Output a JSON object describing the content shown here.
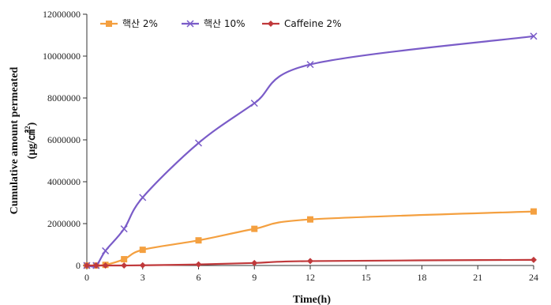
{
  "chart_data": {
    "type": "line",
    "xlabel": "Time(h)",
    "ylabel_main": "Cumulative amount permeated",
    "ylabel_unit_prefix": "(μg/㎠",
    "ylabel_unit_sup": "2",
    "ylabel_unit_suffix": ")",
    "xlim": [
      0,
      24
    ],
    "ylim": [
      0,
      12000000
    ],
    "x_ticks": [
      0,
      3,
      6,
      9,
      12,
      15,
      18,
      21,
      24
    ],
    "x_tick_labels": [
      "0",
      "3",
      "6",
      "9",
      "12",
      "15",
      "18",
      "21",
      "24"
    ],
    "y_ticks": [
      0,
      2000000,
      4000000,
      6000000,
      8000000,
      10000000,
      12000000
    ],
    "y_tick_labels": [
      "0",
      "2000000",
      "4000000",
      "6000000",
      "8000000",
      "10000000",
      "12000000"
    ],
    "grid": false,
    "legend_position": "top",
    "series": [
      {
        "name": "핵산 2%",
        "color": "#f4a040",
        "marker": "square",
        "x": [
          0,
          0.5,
          1,
          2,
          3,
          6,
          9,
          12,
          24
        ],
        "y": [
          0,
          0,
          30000,
          300000,
          750000,
          1200000,
          1750000,
          2200000,
          2580000
        ]
      },
      {
        "name": "핵산 10%",
        "color": "#7a5cc8",
        "marker": "x",
        "x": [
          0,
          0.5,
          1,
          2,
          3,
          6,
          9,
          12,
          24
        ],
        "y": [
          0,
          0,
          700000,
          1750000,
          3250000,
          5850000,
          7750000,
          9600000,
          10950000
        ]
      },
      {
        "name": "Caffeine 2%",
        "color": "#c0393b",
        "marker": "diamond",
        "x": [
          0,
          0.5,
          1,
          2,
          3,
          6,
          9,
          12,
          24
        ],
        "y": [
          0,
          0,
          0,
          0,
          10000,
          50000,
          120000,
          210000,
          270000
        ]
      }
    ]
  }
}
